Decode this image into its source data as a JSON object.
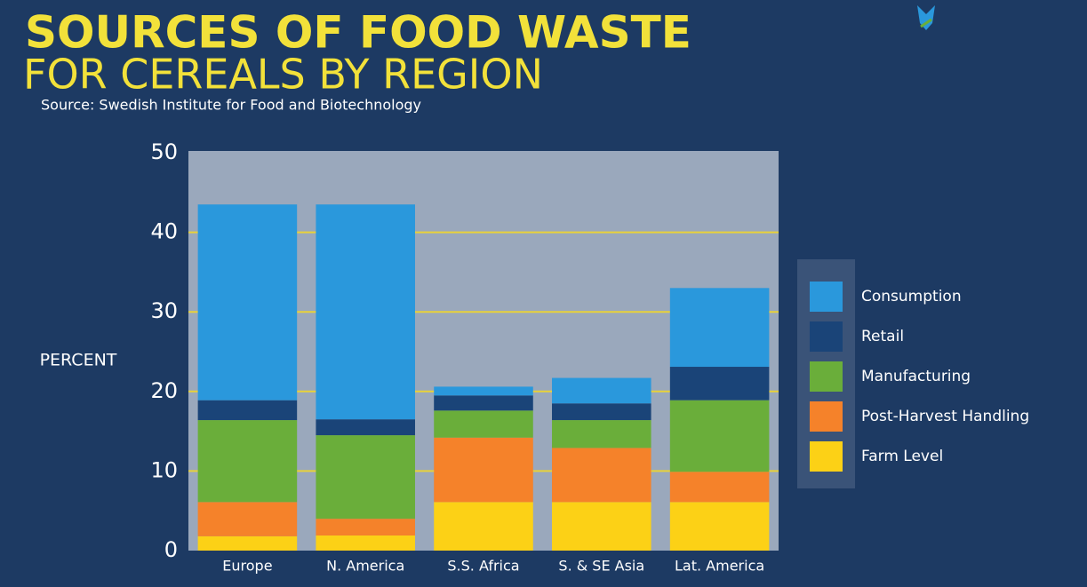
{
  "chart_data": {
    "type": "stacked-bar",
    "title": "SOURCES OF FOOD WASTE",
    "subtitle": "FOR CEREALS BY REGION",
    "source": "Source: Swedish Institute for Food and Biotechnology",
    "y_label": "PERCENT",
    "categories": [
      "Europe",
      "N. America",
      "S.S. Africa",
      "S. & SE Asia",
      "Lat. America"
    ],
    "series": [
      {
        "name": "Farm Level",
        "color": "#fcd116",
        "values": [
          1.8,
          1.9,
          6.1,
          6.1,
          6.1
        ]
      },
      {
        "name": "Post-Harvest Handling",
        "color": "#f5822a",
        "values": [
          4.3,
          2.1,
          8.1,
          6.8,
          3.8
        ]
      },
      {
        "name": "Manufacturing",
        "color": "#6aae3a",
        "values": [
          10.3,
          10.5,
          3.4,
          3.5,
          9.0
        ]
      },
      {
        "name": "Retail",
        "color": "#1a4478",
        "values": [
          2.5,
          2.0,
          1.9,
          2.1,
          4.2
        ]
      },
      {
        "name": "Consumption",
        "color": "#2a98dc",
        "values": [
          24.6,
          27.0,
          1.1,
          3.2,
          9.9
        ]
      }
    ],
    "ylim": [
      0,
      50
    ],
    "yticks": [
      0,
      10,
      20,
      30,
      40,
      50
    ],
    "grid": true
  }
}
